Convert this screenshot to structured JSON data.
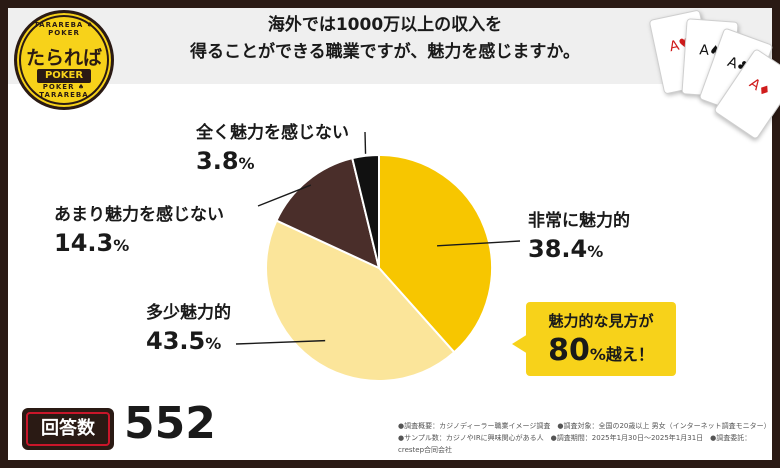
{
  "logo": {
    "ring_top": "TARAREBA ♠ POKER",
    "ring_bottom": "POKER ♠ TARAREBA",
    "main": "たられば",
    "sub": "POKER"
  },
  "header": {
    "title_line1": "海外では1000万以上の収入を",
    "title_line2": "得ることができる職業ですが、魅力を感じますか。"
  },
  "chart_data": {
    "type": "pie",
    "title": "海外では1000万以上の収入を得ることができる職業ですが、魅力を感じますか。",
    "categories": [
      "非常に魅力的",
      "多少魅力的",
      "あまり魅力を感じない",
      "全く魅力を感じない"
    ],
    "values": [
      38.4,
      43.5,
      14.3,
      3.8
    ],
    "value_labels": [
      "38.4",
      "43.5",
      "14.3",
      "3.8"
    ],
    "unit": "%",
    "colors": [
      "#f7c600",
      "#fbe59a",
      "#4a2e2a",
      "#111111"
    ],
    "start": "12 o'clock",
    "direction": "clockwise"
  },
  "callout": {
    "line1": "魅力的な見方が",
    "big": "80",
    "suffix": "%越え！"
  },
  "respondents": {
    "label": "回答数",
    "value": "552"
  },
  "footnote": {
    "line1": "●調査概要：カジノディーラー職業イメージ調査　●調査対象：全国の20歳以上 男女（インターネット調査モニター）",
    "line2": "●サンプル数：カジノやIRに興味関心がある人　●調査期間：2025年1月30日〜2025年1月31日　●調査委託：crestep合同会社"
  },
  "playing_cards": [
    "A♥",
    "A♠",
    "A♣",
    "A♦"
  ]
}
